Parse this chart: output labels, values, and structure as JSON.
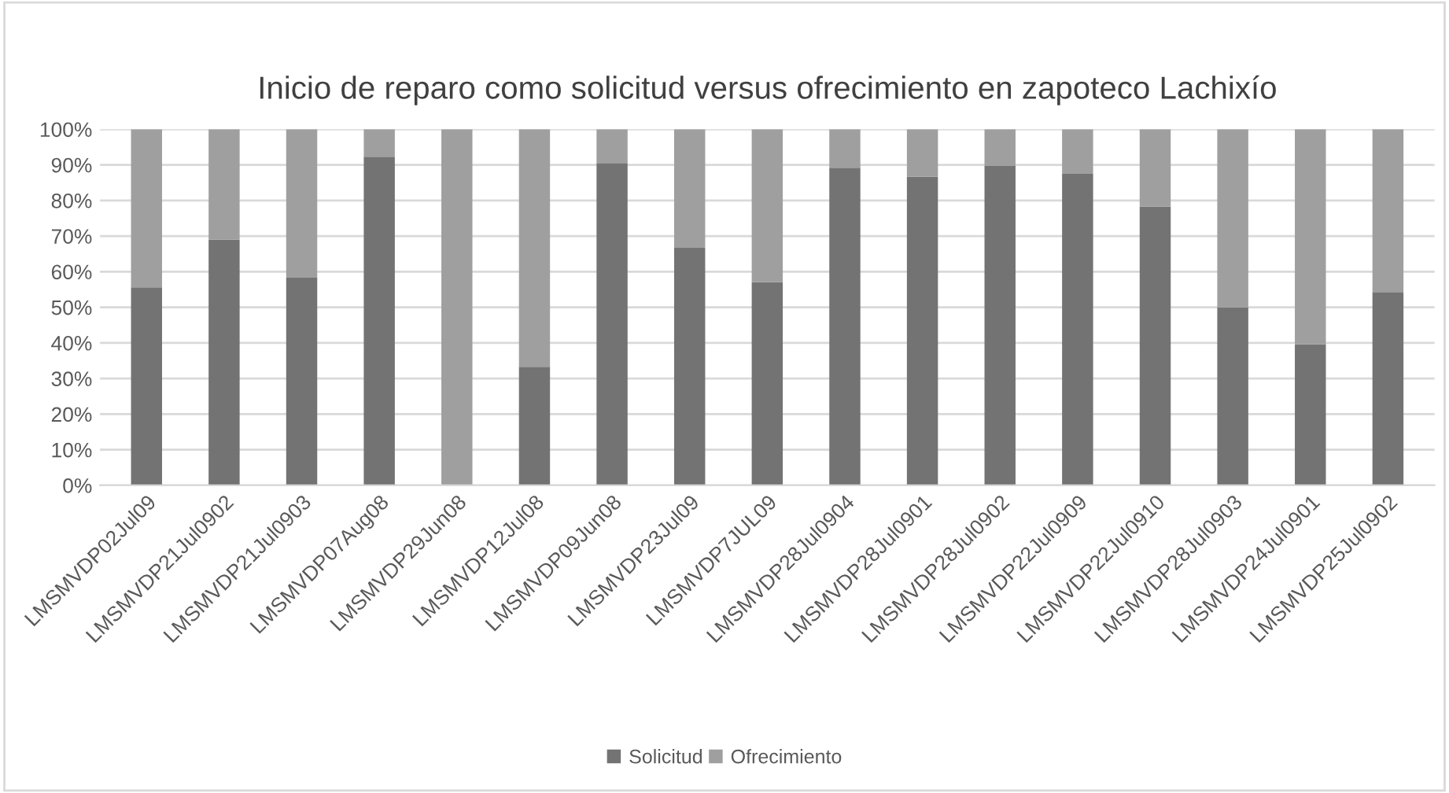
{
  "chart_data": {
    "type": "bar",
    "title": "Inicio de reparo como solicitud versus ofrecimiento en zapoteco Lachixío",
    "categories": [
      "LMSMVDP02Jul09",
      "LMSMVDP21Jul0902",
      "LMSMVDP21Jul0903",
      "LMSMVDP07Aug08",
      "LMSMVDP29Jun08",
      "LMSMVDP12Jul08",
      "LMSMVDP09Jun08",
      "LMSMVDP23Jul09",
      "LMSMVDP7JUL09",
      "LMSMVDP28Jul0904",
      "LMSMVDP28Jul0901",
      "LMSMVDP28Jul0902",
      "LMSMVDP22Jul0909",
      "LMSMVDP22Jul0910",
      "LMSMVDP28Jul0903",
      "LMSMVDP24Jul0901",
      "LMSMVDP25Jul0902"
    ],
    "series": [
      {
        "name": "Solicitud",
        "color": "#737373",
        "values": [
          55.6,
          69,
          58.3,
          92.3,
          0,
          33.3,
          90.5,
          66.7,
          57.1,
          89.2,
          86.7,
          89.7,
          87.5,
          78.3,
          50,
          39.6,
          54.3
        ]
      },
      {
        "name": "Ofrecimiento",
        "color": "#9f9f9f",
        "values": [
          44.4,
          31,
          41.7,
          7.7,
          100,
          66.7,
          9.5,
          33.3,
          42.9,
          10.8,
          13.3,
          10.3,
          12.5,
          21.7,
          50,
          60.4,
          45.7
        ]
      }
    ],
    "stacked": true,
    "ylim": [
      0,
      100
    ],
    "yticks": [
      {
        "value": 0,
        "label": "0%"
      },
      {
        "value": 10,
        "label": "10%"
      },
      {
        "value": 20,
        "label": "20%"
      },
      {
        "value": 30,
        "label": "30%"
      },
      {
        "value": 40,
        "label": "40%"
      },
      {
        "value": 50,
        "label": "50%"
      },
      {
        "value": 60,
        "label": "60%"
      },
      {
        "value": 70,
        "label": "70%"
      },
      {
        "value": 80,
        "label": "80%"
      },
      {
        "value": 90,
        "label": "90%"
      },
      {
        "value": 100,
        "label": "100%"
      }
    ],
    "grid": "y",
    "legend": "bottom"
  }
}
